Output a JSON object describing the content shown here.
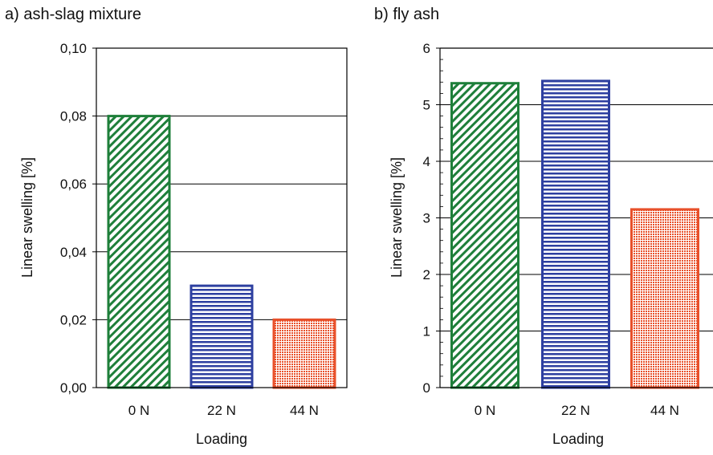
{
  "chart_data": [
    {
      "type": "bar",
      "title": "a) ash-slag mixture",
      "xlabel": "Loading",
      "ylabel": "Linear swelling [%]",
      "categories": [
        "0 N",
        "22 N",
        "44 N"
      ],
      "values": [
        0.08,
        0.03,
        0.02
      ],
      "ylim": [
        0,
        0.1
      ],
      "yticks": [
        "0,00",
        "0,02",
        "0,04",
        "0,06",
        "0,08",
        "0,10"
      ],
      "grid": true,
      "bar_colors": [
        "#1e7f3a",
        "#2d3fa0",
        "#e8502a"
      ],
      "bar_patterns": [
        "diagonal-hatch",
        "horizontal-lines",
        "crosshatch"
      ]
    },
    {
      "type": "bar",
      "title": "b) fly ash",
      "xlabel": "Loading",
      "ylabel": "Linear swelling [%]",
      "categories": [
        "0 N",
        "22 N",
        "44 N"
      ],
      "values": [
        5.38,
        5.42,
        3.15
      ],
      "ylim": [
        0,
        6
      ],
      "yticks": [
        "0",
        "1",
        "2",
        "3",
        "4",
        "5",
        "6"
      ],
      "grid": true,
      "bar_colors": [
        "#1e7f3a",
        "#2d3fa0",
        "#e8502a"
      ],
      "bar_patterns": [
        "diagonal-hatch",
        "horizontal-lines",
        "crosshatch"
      ]
    }
  ]
}
